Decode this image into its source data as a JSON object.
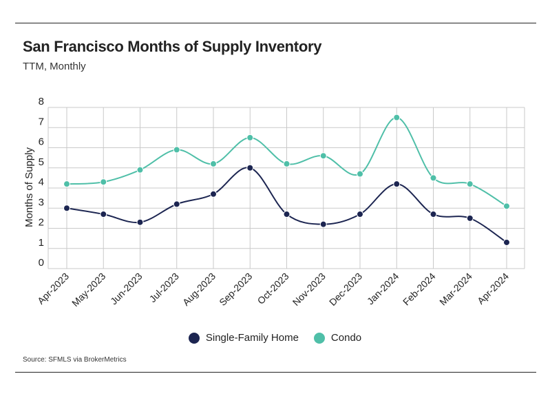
{
  "header": {
    "title": "San Francisco Months of Supply Inventory",
    "subtitle": "TTM, Monthly"
  },
  "footer": {
    "source": "Source:  SFMLS via BrokerMetrics"
  },
  "colors": {
    "single_family": "#1c2551",
    "condo": "#4fbfa8",
    "grid": "#c9c9c9",
    "text": "#222222"
  },
  "chart_data": {
    "type": "line",
    "title": "San Francisco Months of Supply Inventory",
    "subtitle": "TTM, Monthly",
    "xlabel": "",
    "ylabel": "Months of Supply",
    "ylim": [
      0,
      8
    ],
    "yticks": [
      "0",
      "1",
      "2",
      "3",
      "4",
      "5",
      "6",
      "7",
      "8"
    ],
    "grid": true,
    "smooth": true,
    "legend_position": "bottom",
    "categories": [
      "Apr-2023",
      "May-2023",
      "Jun-2023",
      "Jul-2023",
      "Aug-2023",
      "Sep-2023",
      "Oct-2023",
      "Nov-2023",
      "Dec-2023",
      "Jan-2024",
      "Feb-2024",
      "Mar-2024",
      "Apr-2024"
    ],
    "series": [
      {
        "name": "Single-Family Home",
        "color": "#1c2551",
        "values": [
          3.0,
          2.7,
          2.3,
          3.2,
          3.7,
          5.0,
          2.7,
          2.2,
          2.7,
          4.2,
          2.7,
          2.5,
          1.3
        ]
      },
      {
        "name": "Condo",
        "color": "#4fbfa8",
        "values": [
          4.2,
          4.3,
          4.9,
          5.9,
          5.2,
          6.5,
          5.2,
          5.6,
          4.7,
          7.5,
          4.5,
          4.2,
          3.1
        ]
      }
    ]
  }
}
